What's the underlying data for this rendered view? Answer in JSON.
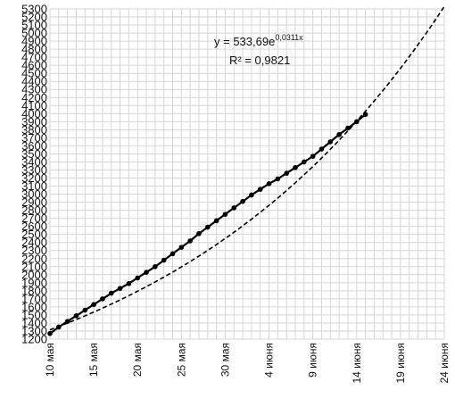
{
  "chart_data": {
    "type": "scatter",
    "x_labels": [
      "10 мая",
      "15 мая",
      "20 мая",
      "25 мая",
      "30 мая",
      "4 июня",
      "9 июня",
      "14 июня",
      "19 июня",
      "24 июня"
    ],
    "xlim": [
      "2020-05-10",
      "2020-06-24"
    ],
    "ylim": [
      1200,
      5300
    ],
    "y_ticks": [
      1200,
      1300,
      1400,
      1500,
      1600,
      1700,
      1800,
      1900,
      2000,
      2100,
      2200,
      2300,
      2400,
      2500,
      2600,
      2700,
      2800,
      2900,
      3000,
      3100,
      3200,
      3300,
      3400,
      3500,
      3600,
      3700,
      3800,
      3900,
      4000,
      4100,
      4200,
      4300,
      4400,
      4500,
      4600,
      4700,
      4800,
      4900,
      5000,
      5100,
      5200,
      5300
    ],
    "grid": true,
    "annotation": {
      "equation_prefix": "y = 533,69e",
      "equation_exponent": "0,0311x",
      "r_squared": "R² = 0,9821"
    },
    "series": [
      {
        "style": "points-with-line",
        "x": [
          "2020-05-10",
          "2020-05-11",
          "2020-05-12",
          "2020-05-13",
          "2020-05-14",
          "2020-05-15",
          "2020-05-16",
          "2020-05-17",
          "2020-05-18",
          "2020-05-19",
          "2020-05-20",
          "2020-05-21",
          "2020-05-22",
          "2020-05-23",
          "2020-05-24",
          "2020-05-25",
          "2020-05-26",
          "2020-05-27",
          "2020-05-28",
          "2020-05-29",
          "2020-05-30",
          "2020-05-31",
          "2020-06-01",
          "2020-06-02",
          "2020-06-03",
          "2020-06-04",
          "2020-06-05",
          "2020-06-06",
          "2020-06-07",
          "2020-06-08",
          "2020-06-09",
          "2020-06-10",
          "2020-06-11",
          "2020-06-12",
          "2020-06-13",
          "2020-06-14",
          "2020-06-15"
        ],
        "values": [
          1270,
          1350,
          1420,
          1490,
          1560,
          1630,
          1700,
          1770,
          1830,
          1890,
          1960,
          2030,
          2100,
          2180,
          2260,
          2340,
          2420,
          2510,
          2590,
          2670,
          2750,
          2830,
          2910,
          2990,
          3060,
          3130,
          3190,
          3260,
          3330,
          3400,
          3470,
          3560,
          3650,
          3740,
          3820,
          3900,
          3990
        ]
      },
      {
        "style": "dashed-trend",
        "trend": "exponential"
      }
    ]
  }
}
